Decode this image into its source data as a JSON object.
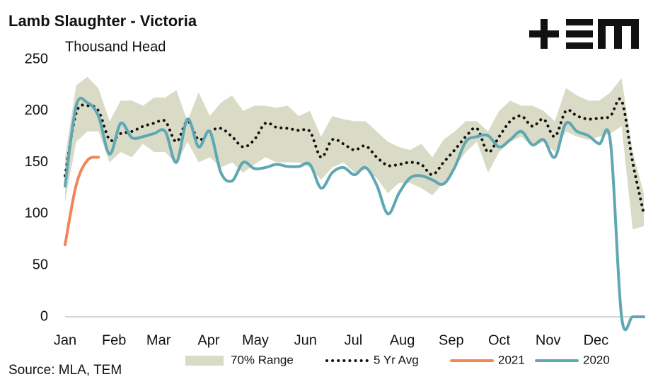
{
  "chart_data": {
    "type": "line",
    "title": "Lamb Slaughter - Victoria",
    "subtitle": "Thousand Head",
    "source": "Source: MLA, TEM",
    "x": [
      0,
      1,
      2,
      3,
      4,
      5,
      6,
      7,
      8,
      9,
      10,
      11,
      12,
      13,
      14,
      15,
      16,
      17,
      18,
      19,
      20,
      21,
      22,
      23,
      24,
      25,
      26,
      27,
      28,
      29,
      30,
      31,
      32,
      33,
      34,
      35,
      36,
      37,
      38,
      39,
      40,
      41,
      42,
      43,
      44,
      45,
      46,
      47,
      48,
      49,
      50,
      51,
      52
    ],
    "xlim": [
      0,
      52
    ],
    "xticks": [
      {
        "value": 0,
        "label": "Jan"
      },
      {
        "value": 4.4,
        "label": "Feb"
      },
      {
        "value": 8.4,
        "label": "Mar"
      },
      {
        "value": 12.9,
        "label": "Apr"
      },
      {
        "value": 17.1,
        "label": "May"
      },
      {
        "value": 21.6,
        "label": "Jun"
      },
      {
        "value": 25.9,
        "label": "Jul"
      },
      {
        "value": 30.3,
        "label": "Aug"
      },
      {
        "value": 34.7,
        "label": "Sep"
      },
      {
        "value": 39,
        "label": "Oct"
      },
      {
        "value": 43.4,
        "label": "Nov"
      },
      {
        "value": 47.7,
        "label": "Dec"
      }
    ],
    "ylim": [
      0,
      250
    ],
    "yticks": [
      0,
      50,
      100,
      150,
      200,
      250
    ],
    "grid": false,
    "range": {
      "name": "70% Range",
      "color": "#d9dbc6",
      "upper": [
        155,
        225,
        233,
        222,
        190,
        210,
        210,
        205,
        213,
        213,
        220,
        190,
        218,
        195,
        208,
        215,
        200,
        205,
        205,
        203,
        205,
        195,
        200,
        175,
        195,
        192,
        190,
        190,
        180,
        170,
        165,
        162,
        168,
        155,
        172,
        180,
        190,
        190,
        180,
        200,
        210,
        205,
        205,
        200,
        190,
        222,
        215,
        210,
        210,
        218,
        232,
        160,
        120
      ],
      "lower": [
        112,
        170,
        180,
        180,
        150,
        160,
        155,
        168,
        160,
        160,
        148,
        170,
        150,
        155,
        145,
        150,
        140,
        148,
        155,
        150,
        150,
        150,
        145,
        133,
        145,
        150,
        140,
        143,
        135,
        120,
        130,
        130,
        125,
        118,
        130,
        145,
        160,
        170,
        140,
        160,
        170,
        175,
        165,
        170,
        160,
        180,
        175,
        172,
        175,
        178,
        185,
        85,
        88
      ]
    },
    "series": [
      {
        "name": "5 Yr Avg",
        "color": "#111111",
        "style": "dotted",
        "values": [
          137,
          198,
          205,
          200,
          172,
          178,
          180,
          185,
          188,
          190,
          170,
          190,
          172,
          180,
          183,
          175,
          165,
          172,
          188,
          184,
          183,
          181,
          180,
          155,
          172,
          168,
          162,
          166,
          155,
          147,
          148,
          150,
          148,
          138,
          150,
          162,
          175,
          183,
          160,
          175,
          190,
          195,
          185,
          192,
          175,
          200,
          195,
          192,
          193,
          195,
          210,
          150,
          100
        ]
      },
      {
        "name": "2021",
        "color": "#f4845a",
        "style": "solid",
        "values": [
          70,
          128,
          152,
          155,
          null,
          null,
          null,
          null,
          null,
          null,
          null,
          null,
          null,
          null,
          null,
          null,
          null,
          null,
          null,
          null,
          null,
          null,
          null,
          null,
          null,
          null,
          null,
          null,
          null,
          null,
          null,
          null,
          null,
          null,
          null,
          null,
          null,
          null,
          null,
          null,
          null,
          null,
          null,
          null,
          null,
          null,
          null,
          null,
          null,
          null,
          null,
          null,
          null
        ]
      },
      {
        "name": "2020",
        "color": "#5fa7b3",
        "style": "solid",
        "values": [
          127,
          205,
          208,
          195,
          158,
          188,
          174,
          175,
          178,
          180,
          150,
          192,
          165,
          180,
          140,
          132,
          150,
          144,
          145,
          148,
          146,
          146,
          148,
          125,
          140,
          145,
          138,
          145,
          128,
          100,
          120,
          135,
          137,
          133,
          129,
          145,
          170,
          175,
          176,
          165,
          172,
          180,
          167,
          172,
          155,
          188,
          180,
          176,
          168,
          170,
          0,
          0,
          0
        ]
      }
    ]
  }
}
